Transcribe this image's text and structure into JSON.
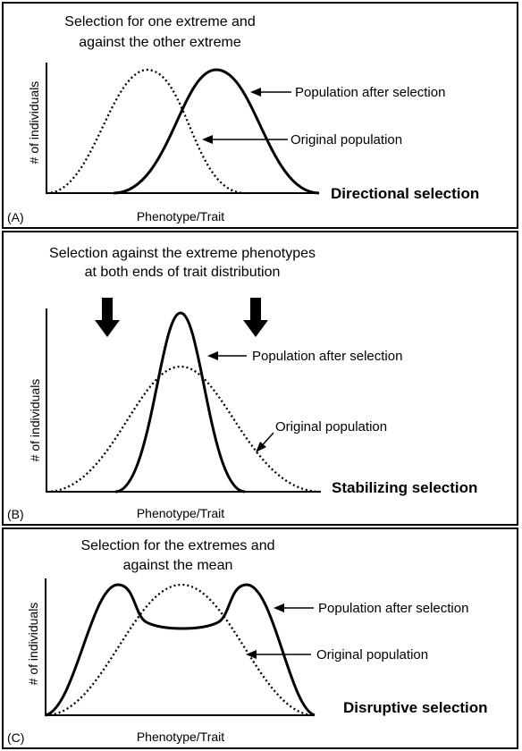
{
  "panels": [
    {
      "id": "A",
      "tag": "(A)",
      "title_lines": [
        "Selection for one extreme and",
        "against the other extreme"
      ],
      "ylabel": "# of individuals",
      "xlabel": "Phenotype/Trait",
      "label_after": "Population after selection",
      "label_original": "Original population",
      "selection_type": "Directional selection"
    },
    {
      "id": "B",
      "tag": "(B)",
      "title_lines": [
        "Selection against the extreme phenotypes",
        "at both ends of trait distribution"
      ],
      "ylabel": "# of individuals",
      "xlabel": "Phenotype/Trait",
      "label_after": "Population after selection",
      "label_original": "Original population",
      "selection_type": "Stabilizing selection"
    },
    {
      "id": "C",
      "tag": "(C)",
      "title_lines": [
        "Selection for the extremes and",
        "against the mean"
      ],
      "ylabel": "# of individuals",
      "xlabel": "Phenotype/Trait",
      "label_after": "Population after selection",
      "label_original": "Original population",
      "selection_type": "Disruptive selection"
    }
  ]
}
